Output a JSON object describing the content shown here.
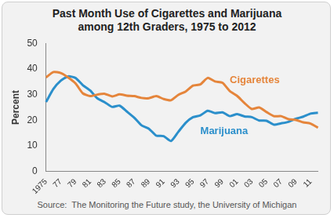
{
  "chart_data": {
    "type": "line",
    "title": "Past Month Use of Cigarettes and Marijuana among 12th Graders, 1975 to 2012",
    "y_label": "Percent",
    "source": "Source:  The Monitoring the Future study, the University of Michigan",
    "categories": [
      "1975",
      null,
      "77",
      null,
      "79",
      null,
      "81",
      null,
      "83",
      null,
      "85",
      null,
      "87",
      null,
      "89",
      null,
      "91",
      null,
      "93",
      null,
      "95",
      null,
      "97",
      null,
      "99",
      null,
      "01",
      null,
      "03",
      null,
      "05",
      null,
      "07",
      null,
      "09",
      null,
      "11",
      null
    ],
    "series": [
      {
        "name": "Cigarettes",
        "color": "#e5853b",
        "values": [
          36.7,
          38.8,
          38.4,
          36.7,
          34.4,
          30.5,
          29.4,
          30.0,
          30.3,
          29.3,
          30.1,
          29.6,
          29.4,
          28.7,
          28.6,
          29.4,
          28.3,
          27.8,
          29.9,
          31.2,
          33.5,
          34.0,
          36.5,
          35.1,
          34.6,
          31.4,
          29.5,
          26.7,
          24.4,
          25.0,
          23.2,
          21.6,
          21.6,
          20.4,
          20.1,
          19.2,
          18.7,
          17.1
        ]
      },
      {
        "name": "Marijuana",
        "color": "#2b8fcb",
        "values": [
          27.1,
          32.2,
          35.4,
          37.1,
          36.5,
          33.7,
          31.6,
          28.5,
          27.0,
          25.2,
          25.7,
          23.4,
          21.0,
          18.0,
          16.7,
          14.0,
          13.8,
          11.9,
          15.5,
          19.0,
          21.2,
          21.9,
          23.7,
          22.8,
          23.1,
          21.6,
          22.4,
          21.5,
          21.2,
          19.9,
          19.8,
          18.3,
          18.8,
          19.4,
          20.6,
          21.4,
          22.6,
          22.9
        ]
      }
    ],
    "ylim": [
      0,
      50
    ],
    "yticks": [
      0,
      10,
      20,
      30,
      40,
      50
    ],
    "grid": false
  }
}
